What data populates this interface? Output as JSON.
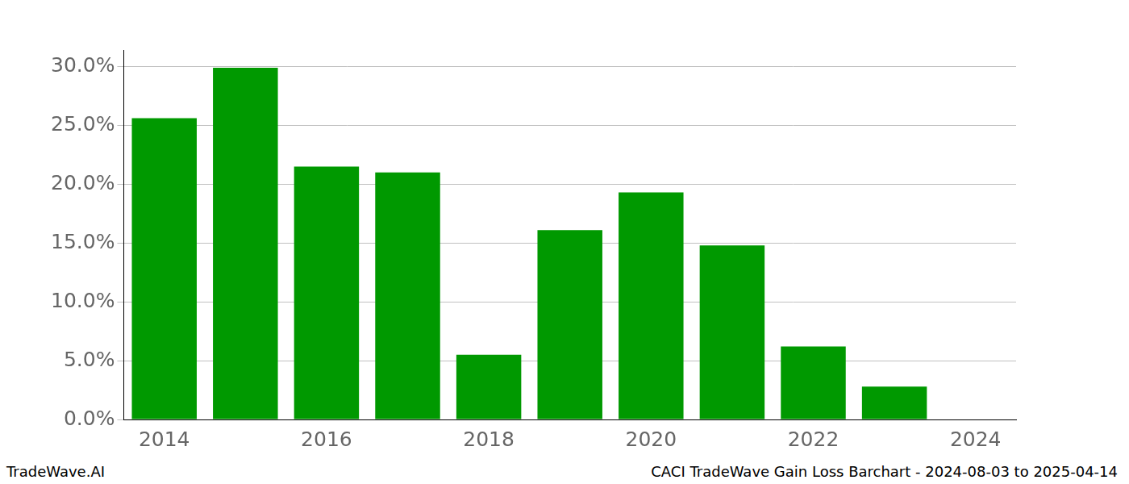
{
  "chart_data": {
    "type": "bar",
    "categories": [
      "2014",
      null,
      "2016",
      null,
      "2018",
      null,
      "2020",
      null,
      "2022",
      null,
      "2024"
    ],
    "values": [
      25.6,
      29.9,
      21.5,
      21.0,
      5.5,
      16.1,
      19.3,
      14.8,
      6.2,
      2.8,
      null
    ],
    "color": "#009900",
    "ylim": [
      0,
      31.4
    ],
    "yticks": [
      {
        "value": 0,
        "label": "0.0%"
      },
      {
        "value": 5,
        "label": "5.0%"
      },
      {
        "value": 10,
        "label": "10.0%"
      },
      {
        "value": 15,
        "label": "15.0%"
      },
      {
        "value": 20,
        "label": "20.0%"
      },
      {
        "value": 25,
        "label": "25.0%"
      },
      {
        "value": 30,
        "label": "30.0%"
      }
    ],
    "grid": true,
    "footer_left": "TradeWave.AI",
    "footer_right": "CACI TradeWave Gain Loss Barchart - 2024-08-03 to 2025-04-14"
  }
}
